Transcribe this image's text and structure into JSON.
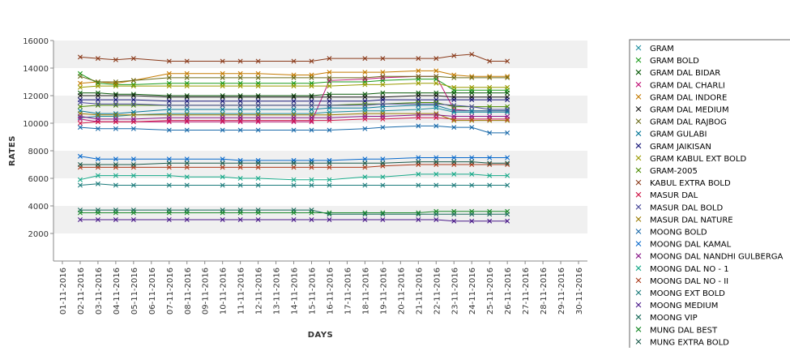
{
  "chart_data": {
    "type": "line",
    "xlabel": "DAYS",
    "ylabel": "RATES",
    "ylim": [
      0,
      16000
    ],
    "y_ticks": [
      2000,
      4000,
      6000,
      8000,
      10000,
      12000,
      14000,
      16000
    ],
    "x_ticks": [
      "01-11-2016",
      "02-11-2016",
      "03-11-2016",
      "04-11-2016",
      "05-11-2016",
      "06-11-2016",
      "07-11-2016",
      "08-11-2016",
      "09-11-2016",
      "10-11-2016",
      "11-11-2016",
      "12-11-2016",
      "13-11-2016",
      "14-11-2016",
      "15-11-2016",
      "16-11-2016",
      "17-11-2016",
      "18-11-2016",
      "19-11-2016",
      "20-11-2016",
      "21-11-2016",
      "22-11-2016",
      "23-11-2016",
      "24-11-2016",
      "25-11-2016",
      "26-11-2016",
      "27-11-2016",
      "28-11-2016",
      "29-11-2016",
      "30-11-2016"
    ],
    "x": [
      "02-11-2016",
      "03-11-2016",
      "04-11-2016",
      "05-11-2016",
      "07-11-2016",
      "08-11-2016",
      "10-11-2016",
      "11-11-2016",
      "12-11-2016",
      "14-11-2016",
      "15-11-2016",
      "16-11-2016",
      "18-11-2016",
      "19-11-2016",
      "21-11-2016",
      "22-11-2016",
      "23-11-2016",
      "24-11-2016",
      "25-11-2016",
      "26-11-2016"
    ],
    "grid": "horizontal alternating bands",
    "legend_position": "right",
    "series": [
      {
        "name": "GRAM",
        "color": "#1f8fa0",
        "values": [
          10400,
          10500,
          10500,
          10600,
          10700,
          10700,
          10700,
          10700,
          10700,
          10700,
          10700,
          10800,
          10900,
          10900,
          11000,
          11100,
          10800,
          10800,
          10800,
          10800
        ]
      },
      {
        "name": "GRAM BOLD",
        "color": "#1a9a1a",
        "values": [
          13600,
          12900,
          12800,
          12800,
          12900,
          12900,
          12900,
          12900,
          12900,
          12900,
          12900,
          13000,
          13000,
          13100,
          13200,
          13200,
          12400,
          12400,
          12400,
          12400
        ]
      },
      {
        "name": "GRAM DAL BIDAR",
        "color": "#0a5a0a",
        "values": [
          12200,
          12200,
          12100,
          12100,
          12000,
          12000,
          12000,
          12000,
          12000,
          12000,
          12000,
          12100,
          12100,
          12200,
          12200,
          12200,
          12200,
          12200,
          12200,
          12200
        ]
      },
      {
        "name": "GRAM DAL CHARLI",
        "color": "#c2187a",
        "values": [
          10300,
          10100,
          10100,
          10100,
          10100,
          10100,
          10100,
          10100,
          10100,
          10100,
          10100,
          13100,
          13200,
          13300,
          13400,
          13400,
          11000,
          10900,
          10900,
          10900
        ]
      },
      {
        "name": "GRAM DAL INDORE",
        "color": "#c47a00",
        "values": [
          12900,
          13000,
          12900,
          13100,
          13600,
          13600,
          13600,
          13600,
          13600,
          13500,
          13500,
          13700,
          13700,
          13700,
          13800,
          13800,
          13500,
          13400,
          13400,
          13400
        ]
      },
      {
        "name": "GRAM DAL MEDIUM",
        "color": "#1a1a1a",
        "values": [
          12000,
          12000,
          12000,
          12000,
          11900,
          11900,
          11900,
          11900,
          11900,
          11900,
          11900,
          11900,
          11900,
          11900,
          12000,
          12000,
          11900,
          11900,
          11900,
          11900
        ]
      },
      {
        "name": "GRAM DAL RAJBOG",
        "color": "#6b6b1a",
        "values": [
          13400,
          13000,
          13000,
          13100,
          13300,
          13300,
          13300,
          13300,
          13300,
          13300,
          13300,
          13300,
          13300,
          13400,
          13400,
          13400,
          13300,
          13300,
          13300,
          13300
        ]
      },
      {
        "name": "GRAM GULABI",
        "color": "#0a7a9a",
        "values": [
          10900,
          10700,
          10700,
          10800,
          11000,
          11000,
          11000,
          11000,
          11000,
          11000,
          11000,
          11100,
          11100,
          11200,
          11300,
          11300,
          10900,
          10900,
          10900,
          10900
        ]
      },
      {
        "name": "GRAM JAIKISAN",
        "color": "#1a1a7a",
        "values": [
          11700,
          11700,
          11700,
          11700,
          11600,
          11600,
          11600,
          11600,
          11600,
          11600,
          11600,
          11600,
          11600,
          11700,
          11700,
          11700,
          11700,
          11700,
          11700,
          11700
        ]
      },
      {
        "name": "GRAM KABUL EXT BOLD",
        "color": "#9a9a00",
        "values": [
          12600,
          12700,
          12700,
          12700,
          12700,
          12700,
          12700,
          12700,
          12700,
          12700,
          12700,
          12700,
          12800,
          12800,
          12900,
          12900,
          12600,
          12600,
          12600,
          12600
        ]
      },
      {
        "name": "GRAM-2005",
        "color": "#4a8a00",
        "values": [
          11200,
          11300,
          11300,
          11300,
          11300,
          11300,
          11300,
          11300,
          11300,
          11300,
          11300,
          11300,
          11400,
          11400,
          11500,
          11500,
          11200,
          11200,
          11200,
          11200
        ]
      },
      {
        "name": "KABUL EXTRA BOLD",
        "color": "#8a3a1a",
        "values": [
          14800,
          14700,
          14600,
          14700,
          14500,
          14500,
          14500,
          14500,
          14500,
          14500,
          14500,
          14700,
          14700,
          14700,
          14700,
          14700,
          14900,
          15000,
          14500,
          14500
        ]
      },
      {
        "name": "MASUR DAL",
        "color": "#d01a4a",
        "values": [
          10000,
          10100,
          10100,
          10100,
          10200,
          10200,
          10200,
          10200,
          10200,
          10200,
          10200,
          10200,
          10300,
          10300,
          10400,
          10400,
          10300,
          10300,
          10300,
          10300
        ]
      },
      {
        "name": "MASUR DAL BOLD",
        "color": "#4a4a9a",
        "values": [
          11500,
          11400,
          11400,
          11400,
          11300,
          11300,
          11300,
          11300,
          11300,
          11300,
          11300,
          11300,
          11300,
          11400,
          11400,
          11400,
          11300,
          11200,
          11000,
          11000
        ]
      },
      {
        "name": "MASUR DAL NATURE",
        "color": "#9a7a00",
        "values": [
          10700,
          10600,
          10600,
          10600,
          10600,
          10600,
          10600,
          10600,
          10600,
          10600,
          10600,
          10600,
          10700,
          10700,
          10700,
          10700,
          10200,
          10200,
          10200,
          10200
        ]
      },
      {
        "name": "MOONG BOLD",
        "color": "#1a6aaa",
        "values": [
          9700,
          9600,
          9600,
          9600,
          9500,
          9500,
          9500,
          9500,
          9500,
          9500,
          9500,
          9500,
          9600,
          9700,
          9800,
          9800,
          9700,
          9700,
          9300,
          9300
        ]
      },
      {
        "name": "MOONG DAL KAMAL",
        "color": "#0a6acc",
        "values": [
          7600,
          7400,
          7400,
          7400,
          7400,
          7400,
          7400,
          7300,
          7300,
          7300,
          7300,
          7300,
          7400,
          7400,
          7500,
          7500,
          7500,
          7500,
          7500,
          7500
        ]
      },
      {
        "name": "MOONG DAL NANDHI GULBERGA",
        "color": "#8a1a8a",
        "values": [
          10500,
          10300,
          10300,
          10300,
          10400,
          10400,
          10400,
          10400,
          10400,
          10400,
          10400,
          10400,
          10500,
          10500,
          10600,
          10600,
          10500,
          10500,
          10500,
          10500
        ]
      },
      {
        "name": "MOONG DAL NO - 1",
        "color": "#1aaa8a",
        "values": [
          5900,
          6200,
          6200,
          6200,
          6200,
          6100,
          6100,
          6000,
          6000,
          5900,
          5900,
          5900,
          6100,
          6100,
          6300,
          6300,
          6300,
          6300,
          6200,
          6200
        ]
      },
      {
        "name": "MOONG DAL NO - II",
        "color": "#aa3a1a",
        "values": [
          6800,
          6800,
          6800,
          6800,
          6800,
          6800,
          6800,
          6800,
          6800,
          6800,
          6800,
          6800,
          6800,
          6900,
          7000,
          7000,
          7000,
          7000,
          7000,
          7000
        ]
      },
      {
        "name": "MOONG EXT BOLD",
        "color": "#1a7a7a",
        "values": [
          5500,
          5600,
          5500,
          5500,
          5500,
          5500,
          5500,
          5500,
          5500,
          5500,
          5500,
          5500,
          5500,
          5500,
          5500,
          5500,
          5500,
          5500,
          5500,
          5500
        ]
      },
      {
        "name": "MOONG MEDIUM",
        "color": "#4a1a8a",
        "values": [
          3000,
          3000,
          3000,
          3000,
          3000,
          3000,
          3000,
          3000,
          3000,
          3000,
          3000,
          3000,
          3000,
          3000,
          3000,
          3000,
          2900,
          2900,
          2900,
          2900
        ]
      },
      {
        "name": "MOONG VIP",
        "color": "#1a6a5a",
        "values": [
          3700,
          3700,
          3700,
          3700,
          3700,
          3700,
          3700,
          3700,
          3700,
          3700,
          3700,
          3400,
          3400,
          3400,
          3400,
          3400,
          3400,
          3400,
          3400,
          3400
        ]
      },
      {
        "name": "MUNG DAL BEST",
        "color": "#1a8a2a",
        "values": [
          3500,
          3500,
          3500,
          3500,
          3500,
          3500,
          3500,
          3500,
          3500,
          3500,
          3500,
          3500,
          3500,
          3500,
          3500,
          3600,
          3600,
          3600,
          3600,
          3600
        ]
      },
      {
        "name": "MUNG EXTRA BOLD",
        "color": "#1a5a4a",
        "values": [
          7000,
          7000,
          7000,
          7000,
          7100,
          7100,
          7100,
          7100,
          7100,
          7100,
          7100,
          7100,
          7100,
          7100,
          7200,
          7200,
          7200,
          7200,
          7100,
          7100
        ]
      }
    ]
  }
}
